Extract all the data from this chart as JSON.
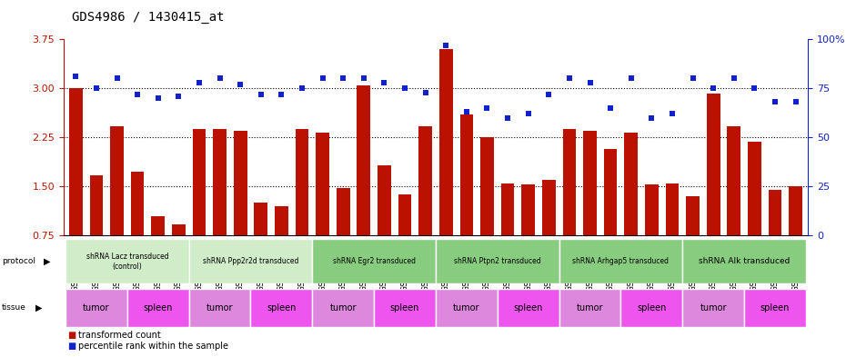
{
  "title": "GDS4986 / 1430415_at",
  "samples": [
    "GSM1290692",
    "GSM1290693",
    "GSM1290694",
    "GSM1290674",
    "GSM1290675",
    "GSM1290676",
    "GSM1290695",
    "GSM1290696",
    "GSM1290697",
    "GSM1290677",
    "GSM1290678",
    "GSM1290679",
    "GSM1290698",
    "GSM1290699",
    "GSM1290700",
    "GSM1290680",
    "GSM1290681",
    "GSM1290682",
    "GSM1290701",
    "GSM1290702",
    "GSM1290703",
    "GSM1290683",
    "GSM1290684",
    "GSM1290685",
    "GSM1290704",
    "GSM1290705",
    "GSM1290706",
    "GSM1290686",
    "GSM1290687",
    "GSM1290688",
    "GSM1290707",
    "GSM1290708",
    "GSM1290709",
    "GSM1290689",
    "GSM1290690",
    "GSM1290691"
  ],
  "bar_values": [
    3.0,
    1.67,
    2.42,
    1.72,
    1.05,
    0.92,
    2.38,
    2.38,
    2.35,
    1.25,
    1.2,
    2.38,
    2.32,
    1.48,
    3.05,
    1.82,
    1.38,
    2.42,
    3.6,
    2.6,
    2.25,
    1.55,
    1.53,
    1.6,
    2.38,
    2.35,
    2.08,
    2.32,
    1.53,
    1.55,
    1.35,
    2.92,
    2.42,
    2.18,
    1.45,
    1.5
  ],
  "dot_values": [
    81,
    75,
    80,
    72,
    70,
    71,
    78,
    80,
    77,
    72,
    72,
    75,
    80,
    80,
    80,
    78,
    75,
    73,
    97,
    63,
    65,
    60,
    62,
    72,
    80,
    78,
    65,
    80,
    60,
    62,
    80,
    75,
    80,
    75,
    68,
    68
  ],
  "protocols": [
    {
      "label": "shRNA Lacz transduced\n(control)",
      "start": 0,
      "end": 6,
      "color": "#c8e8c0"
    },
    {
      "label": "shRNA Ppp2r2d transduced",
      "start": 6,
      "end": 12,
      "color": "#c8e8c0"
    },
    {
      "label": "shRNA Egr2 transduced",
      "start": 12,
      "end": 18,
      "color": "#88cc88"
    },
    {
      "label": "shRNA Ptpn2 transduced",
      "start": 18,
      "end": 24,
      "color": "#88cc88"
    },
    {
      "label": "shRNA Arhgap5 transduced",
      "start": 24,
      "end": 30,
      "color": "#88cc88"
    },
    {
      "label": "shRNA Alk transduced",
      "start": 30,
      "end": 36,
      "color": "#88cc88"
    }
  ],
  "tissues": [
    {
      "label": "tumor",
      "start": 0,
      "end": 3,
      "color": "#dd88dd"
    },
    {
      "label": "spleen",
      "start": 3,
      "end": 6,
      "color": "#ee66ee"
    },
    {
      "label": "tumor",
      "start": 6,
      "end": 9,
      "color": "#dd88dd"
    },
    {
      "label": "spleen",
      "start": 9,
      "end": 12,
      "color": "#ee66ee"
    },
    {
      "label": "tumor",
      "start": 12,
      "end": 15,
      "color": "#dd88dd"
    },
    {
      "label": "spleen",
      "start": 15,
      "end": 18,
      "color": "#ee66ee"
    },
    {
      "label": "tumor",
      "start": 18,
      "end": 21,
      "color": "#dd88dd"
    },
    {
      "label": "spleen",
      "start": 21,
      "end": 24,
      "color": "#ee66ee"
    },
    {
      "label": "tumor",
      "start": 24,
      "end": 27,
      "color": "#dd88dd"
    },
    {
      "label": "spleen",
      "start": 27,
      "end": 30,
      "color": "#ee66ee"
    },
    {
      "label": "tumor",
      "start": 30,
      "end": 33,
      "color": "#dd88dd"
    },
    {
      "label": "spleen",
      "start": 33,
      "end": 36,
      "color": "#ee66ee"
    }
  ],
  "ylim_left": [
    0.75,
    3.75
  ],
  "yticks_left": [
    0.75,
    1.5,
    2.25,
    3.0,
    3.75
  ],
  "ylim_right": [
    0,
    100
  ],
  "yticks_right": [
    0,
    25,
    50,
    75,
    100
  ],
  "bar_color": "#bb1100",
  "dot_color": "#1122cc",
  "bg_color": "#ffffff",
  "title_fontsize": 10,
  "tick_fontsize": 6.5
}
